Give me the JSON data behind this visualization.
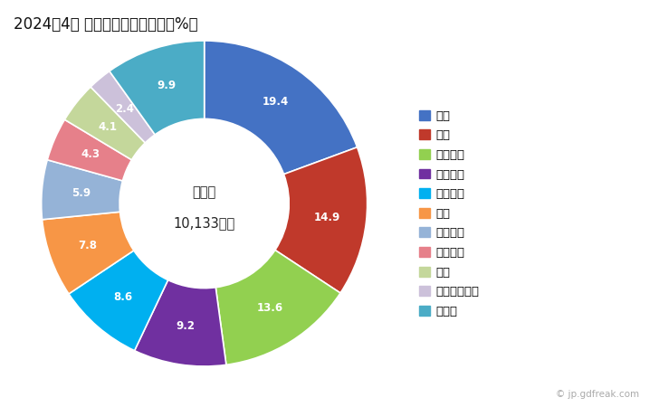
{
  "title": "2024年4月 輸出相手国のシェア（%）",
  "center_label_line1": "総　額",
  "center_label_line2": "10,133万円",
  "labels": [
    "中国",
    "韓国",
    "イタリア",
    "モロッコ",
    "ベトナム",
    "米国",
    "オランダ",
    "メキシコ",
    "タイ",
    "インドネシア",
    "その他"
  ],
  "values": [
    19.4,
    14.9,
    13.6,
    9.2,
    8.6,
    7.8,
    5.9,
    4.3,
    4.1,
    2.4,
    9.9
  ],
  "colors": [
    "#4472c4",
    "#c0392b",
    "#92d050",
    "#7030a0",
    "#00b0f0",
    "#f79646",
    "#95b3d7",
    "#e6808a",
    "#c4d79b",
    "#ccc1da",
    "#4bacc6"
  ],
  "watermark": "© jp.gdfreak.com",
  "startangle": 90
}
